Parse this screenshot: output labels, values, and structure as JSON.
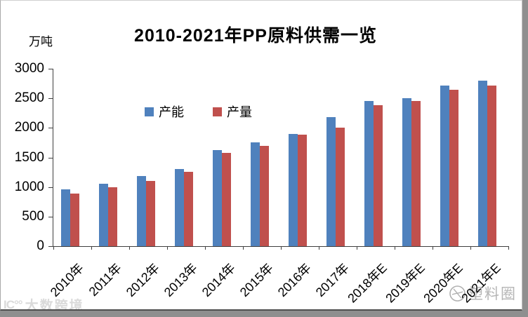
{
  "header": {
    "unit_label": "万吨",
    "title": "2010-2021年PP原料供需一览"
  },
  "chart_data": {
    "type": "bar",
    "title": "2010-2021年PP原料供需一览",
    "ylabel": "万吨",
    "xlabel": "",
    "categories": [
      "2010年",
      "2011年",
      "2012年",
      "2013年",
      "2014年",
      "2015年",
      "2016年",
      "2017年",
      "2018年E",
      "2019年E",
      "2020年E",
      "2021年E"
    ],
    "series": [
      {
        "name": "产能",
        "color": "#4F81BD",
        "values": [
          960,
          1050,
          1180,
          1300,
          1630,
          1760,
          1900,
          2180,
          2450,
          2500,
          2710,
          2800
        ]
      },
      {
        "name": "产量",
        "color": "#C0504D",
        "values": [
          890,
          1000,
          1100,
          1260,
          1580,
          1690,
          1880,
          2000,
          2380,
          2460,
          2640,
          2720
        ]
      }
    ],
    "ylim": [
      0,
      3000
    ],
    "yticks": [
      0,
      500,
      1000,
      1500,
      2000,
      2500,
      3000
    ],
    "grid": false,
    "legend_position": "top-center-inside"
  },
  "watermarks": {
    "bottom_left_logo": "IC°°",
    "bottom_left_text": "大数跨境",
    "bottom_right_text": "塑料圈"
  },
  "colors": {
    "capacity_blue": "#4F81BD",
    "production_red": "#C0504D",
    "axis": "#3f3f3f",
    "frame_gray": "#8f8f8f"
  }
}
